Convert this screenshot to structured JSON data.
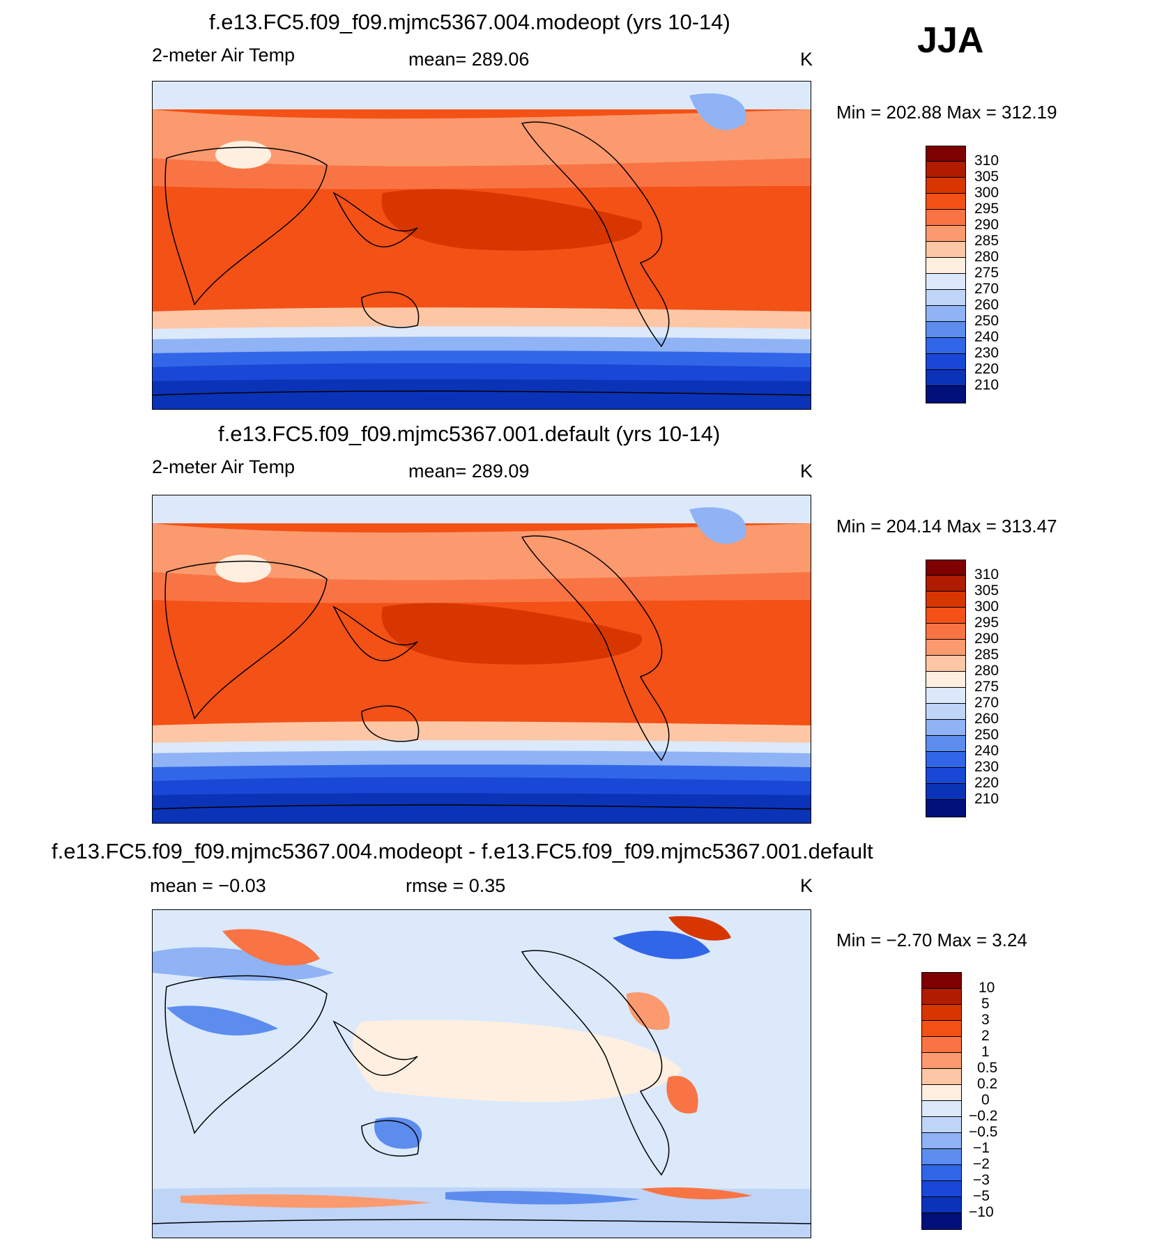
{
  "season": "JJA",
  "colors": {
    "temp": [
      "#7f0000",
      "#b01c00",
      "#d83600",
      "#f35116",
      "#f97444",
      "#fb9a6f",
      "#fdc7a6",
      "#feefe0",
      "#dbe9fb",
      "#bfd5f8",
      "#8fb3f4",
      "#5c8cee",
      "#3266e8",
      "#1a48d6",
      "#0b33b8",
      "#051f96",
      "#00107a"
    ],
    "diff": [
      "#7f0000",
      "#b01c00",
      "#d83600",
      "#f35116",
      "#f97444",
      "#fdc7a6",
      "#feefe0",
      "#dbe9fb",
      "#bfd5f8",
      "#8fb3f4",
      "#5c8cee",
      "#3266e8",
      "#1a48d6",
      "#0b33b8",
      "#00107a"
    ]
  },
  "panels": [
    {
      "title": "f.e13.FC5.f09_f09.mjmc5367.004.modeopt (yrs 10-14)",
      "variable": "2-meter Air Temp",
      "stat": "mean=  289.06",
      "units": "K",
      "minmax": "Min  =  202.88  Max  =  312.19",
      "colorbar_labels": [
        "310",
        "305",
        "300",
        "295",
        "290",
        "285",
        "280",
        "275",
        "270",
        "260",
        "250",
        "240",
        "230",
        "220",
        "210"
      ]
    },
    {
      "title": "f.e13.FC5.f09_f09.mjmc5367.001.default (yrs 10-14)",
      "variable": "2-meter Air Temp",
      "stat": "mean=  289.09",
      "units": "K",
      "minmax": "Min  =  204.14  Max  =  313.47",
      "colorbar_labels": [
        "310",
        "305",
        "300",
        "295",
        "290",
        "285",
        "280",
        "275",
        "270",
        "260",
        "250",
        "240",
        "230",
        "220",
        "210"
      ]
    },
    {
      "title": "f.e13.FC5.f09_f09.mjmc5367.004.modeopt - f.e13.FC5.f09_f09.mjmc5367.001.default",
      "stat_mean": "mean  =    −0.03",
      "stat_rmse": "rmse  =     0.35",
      "units": "K",
      "minmax": "Min  =    −2.70  Max  =     3.24",
      "colorbar_labels": [
        "10",
        "5",
        "3",
        "2",
        "1",
        "0.5",
        "0.2",
        "0",
        "−0.2",
        "−0.5",
        "−1",
        "−2",
        "−3",
        "−5",
        "−10"
      ]
    }
  ]
}
